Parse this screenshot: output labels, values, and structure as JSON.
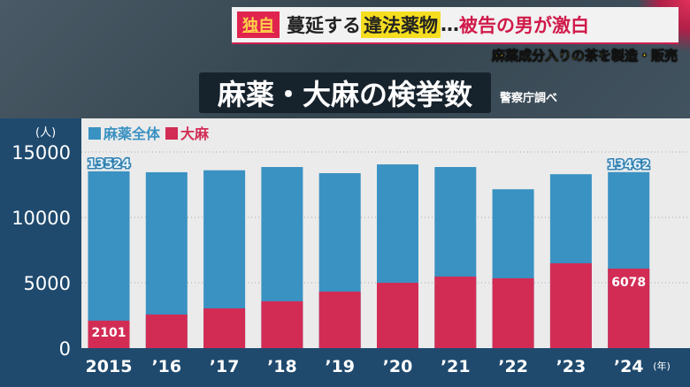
{
  "header": {
    "tag": "独自",
    "headline_part1": "蔓延する",
    "headline_highlight": "違法薬物",
    "headline_sep": "…",
    "headline_part2": "被告の男が激白",
    "subheadline": "麻薬成分入りの茶を製造・販売"
  },
  "colors": {
    "total": "#3a92c2",
    "cannabis": "#d22c55",
    "panel": "#1f4a6e"
  },
  "chart_data": {
    "type": "bar",
    "title": "麻薬・大麻の検挙数",
    "source": "警察庁調べ",
    "ylabel": "(人)",
    "xlabel_suffix": "(年)",
    "ylim": [
      0,
      15000
    ],
    "yticks": [
      "0",
      "5000",
      "10000",
      "15000"
    ],
    "grid": true,
    "legend": "top-left",
    "categories": [
      "2015",
      "’16",
      "’17",
      "’18",
      "’19",
      "’20",
      "’21",
      "’22",
      "’23",
      "’24"
    ],
    "series": [
      {
        "name": "麻薬全体",
        "values": [
          13524,
          13450,
          13600,
          13850,
          13380,
          14050,
          13850,
          12150,
          13300,
          13462
        ]
      },
      {
        "name": "大麻",
        "values": [
          2101,
          2570,
          3040,
          3580,
          4320,
          5000,
          5470,
          5340,
          6490,
          6078
        ]
      }
    ],
    "data_labels": {
      "total_first": "13524",
      "total_last": "13462",
      "cannabis_first": "2101",
      "cannabis_last": "6078"
    }
  }
}
